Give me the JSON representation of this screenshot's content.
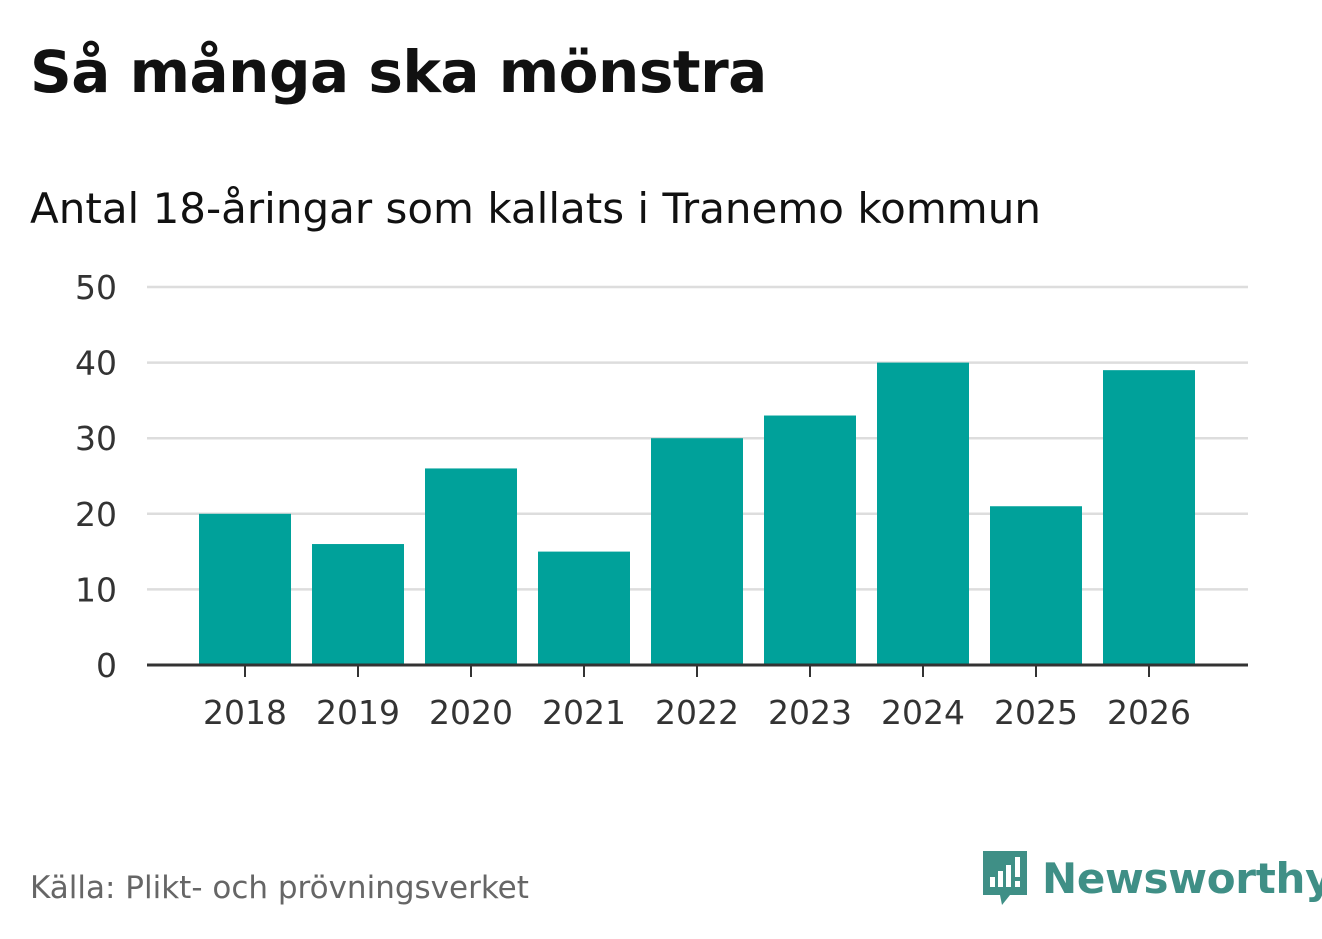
{
  "header": {
    "title": "Så många ska mönstra",
    "subtitle": "Antal 18-åringar som kallats i Tranemo kommun"
  },
  "footer": {
    "source": "Källa: Plikt- och prövningsverket",
    "brand": "Newsworthy"
  },
  "colors": {
    "bar": "#00a19a",
    "grid": "#dddddd",
    "axis": "#333333",
    "brand": "#3f8f86"
  },
  "icons": {
    "brand_logo": "bar-chart-speech-bubble-icon"
  },
  "chart_data": {
    "type": "bar",
    "categories": [
      "2018",
      "2019",
      "2020",
      "2021",
      "2022",
      "2023",
      "2024",
      "2025",
      "2026"
    ],
    "values": [
      20,
      16,
      26,
      15,
      30,
      33,
      40,
      21,
      39
    ],
    "title": "Så många ska mönstra",
    "subtitle": "Antal 18-åringar som kallats i Tranemo kommun",
    "xlabel": "",
    "ylabel": "",
    "ylim": [
      0,
      50
    ],
    "yticks": [
      0,
      10,
      20,
      30,
      40,
      50
    ],
    "grid": true,
    "legend": "none"
  }
}
